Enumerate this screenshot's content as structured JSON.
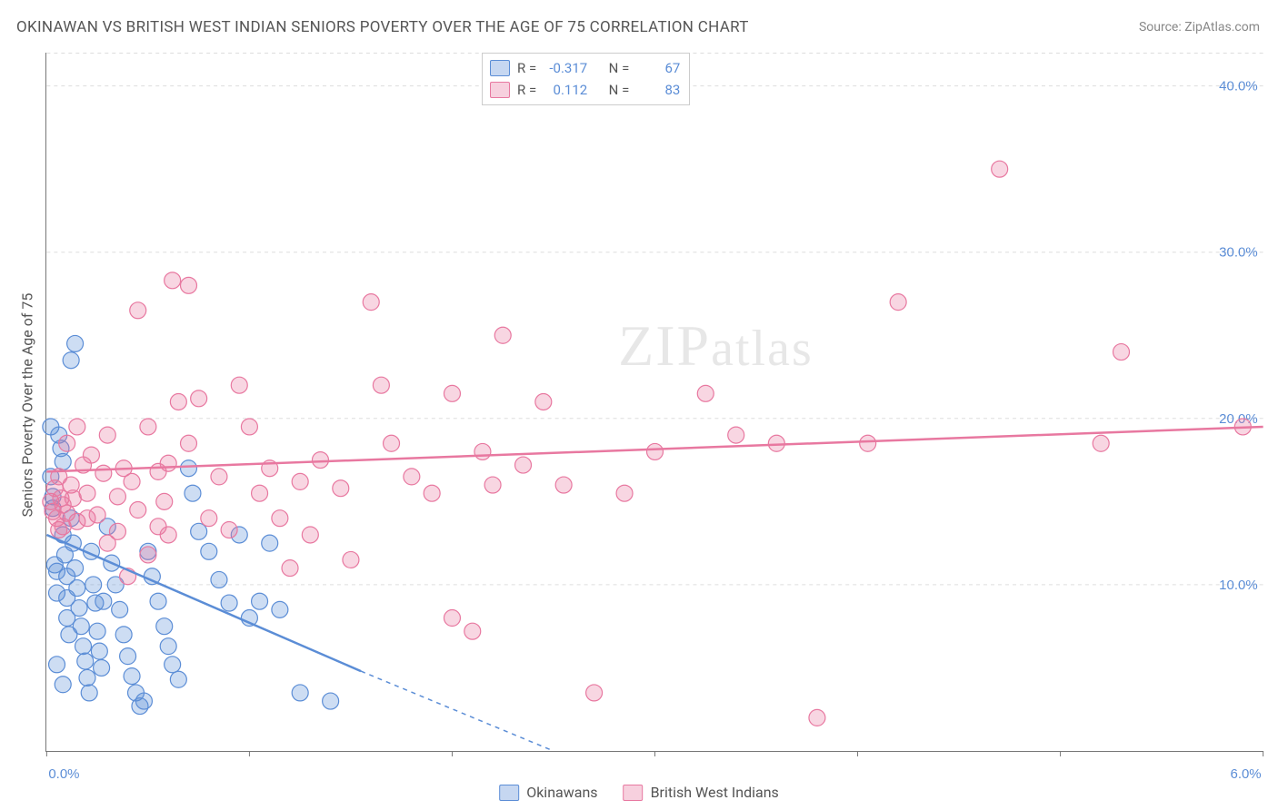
{
  "title": "OKINAWAN VS BRITISH WEST INDIAN SENIORS POVERTY OVER THE AGE OF 75 CORRELATION CHART",
  "source_label": "Source: ",
  "source_name": "ZipAtlas.com",
  "y_axis_title": "Seniors Poverty Over the Age of 75",
  "watermark_a": "ZIP",
  "watermark_b": "atlas",
  "chart": {
    "type": "scatter",
    "xlim": [
      0,
      6
    ],
    "ylim": [
      0,
      42
    ],
    "x_ticks": [
      0,
      1,
      2,
      3,
      4,
      5,
      6
    ],
    "x_tick_labels_shown": {
      "0": "0.0%",
      "6": "6.0%"
    },
    "y_ticks": [
      10,
      20,
      30,
      40
    ],
    "y_tick_labels": [
      "10.0%",
      "20.0%",
      "30.0%",
      "40.0%"
    ],
    "grid_color": "#dddddd",
    "background_color": "#ffffff",
    "axis_color": "#777777",
    "tick_label_color": "#5b8dd6",
    "title_color": "#555555",
    "title_fontsize": 17,
    "label_fontsize": 15,
    "point_radius": 9,
    "point_opacity": 0.35,
    "series": [
      {
        "name": "Okinawans",
        "color": "#5b8dd6",
        "fill": "rgba(91,141,214,0.30)",
        "stroke": "#5b8dd6",
        "r_value": "-0.317",
        "n_value": "67",
        "trend": {
          "x0": 0,
          "y0": 13.0,
          "x1": 1.55,
          "y1": 4.8,
          "x_dash_to": 2.5,
          "y_dash_to": 0
        },
        "points": [
          [
            0.02,
            19.5
          ],
          [
            0.02,
            16.5
          ],
          [
            0.03,
            15.3
          ],
          [
            0.03,
            14.6
          ],
          [
            0.04,
            11.2
          ],
          [
            0.05,
            10.8
          ],
          [
            0.05,
            9.5
          ],
          [
            0.06,
            19.0
          ],
          [
            0.07,
            18.2
          ],
          [
            0.08,
            17.4
          ],
          [
            0.08,
            13.0
          ],
          [
            0.09,
            11.8
          ],
          [
            0.1,
            10.5
          ],
          [
            0.1,
            9.2
          ],
          [
            0.1,
            8.0
          ],
          [
            0.11,
            7.0
          ],
          [
            0.05,
            5.2
          ],
          [
            0.08,
            4.0
          ],
          [
            0.12,
            14.0
          ],
          [
            0.13,
            12.5
          ],
          [
            0.14,
            11.0
          ],
          [
            0.15,
            9.8
          ],
          [
            0.16,
            8.6
          ],
          [
            0.17,
            7.5
          ],
          [
            0.18,
            6.3
          ],
          [
            0.19,
            5.4
          ],
          [
            0.2,
            4.4
          ],
          [
            0.21,
            3.5
          ],
          [
            0.12,
            23.5
          ],
          [
            0.14,
            24.5
          ],
          [
            0.22,
            12.0
          ],
          [
            0.23,
            10.0
          ],
          [
            0.24,
            8.9
          ],
          [
            0.25,
            7.2
          ],
          [
            0.26,
            6.0
          ],
          [
            0.27,
            5.0
          ],
          [
            0.28,
            9.0
          ],
          [
            0.3,
            13.5
          ],
          [
            0.32,
            11.3
          ],
          [
            0.34,
            10.0
          ],
          [
            0.36,
            8.5
          ],
          [
            0.38,
            7.0
          ],
          [
            0.4,
            5.7
          ],
          [
            0.42,
            4.5
          ],
          [
            0.44,
            3.5
          ],
          [
            0.46,
            2.7
          ],
          [
            0.48,
            3.0
          ],
          [
            0.5,
            12.0
          ],
          [
            0.52,
            10.5
          ],
          [
            0.55,
            9.0
          ],
          [
            0.58,
            7.5
          ],
          [
            0.6,
            6.3
          ],
          [
            0.62,
            5.2
          ],
          [
            0.65,
            4.3
          ],
          [
            0.7,
            17.0
          ],
          [
            0.72,
            15.5
          ],
          [
            0.75,
            13.2
          ],
          [
            0.8,
            12.0
          ],
          [
            0.85,
            10.3
          ],
          [
            0.9,
            8.9
          ],
          [
            0.95,
            13.0
          ],
          [
            1.0,
            8.0
          ],
          [
            1.05,
            9.0
          ],
          [
            1.1,
            12.5
          ],
          [
            1.15,
            8.5
          ],
          [
            1.25,
            3.5
          ],
          [
            1.4,
            3.0
          ]
        ]
      },
      {
        "name": "British West Indians",
        "color": "#e878a0",
        "fill": "rgba(232,120,160,0.30)",
        "stroke": "#e878a0",
        "r_value": "0.112",
        "n_value": "83",
        "trend": {
          "x0": 0,
          "y0": 16.8,
          "x1": 6,
          "y1": 19.5
        },
        "points": [
          [
            0.02,
            15.0
          ],
          [
            0.03,
            14.4
          ],
          [
            0.04,
            15.8
          ],
          [
            0.05,
            14.0
          ],
          [
            0.06,
            16.5
          ],
          [
            0.07,
            15.2
          ],
          [
            0.08,
            14.8
          ],
          [
            0.1,
            18.5
          ],
          [
            0.12,
            16.0
          ],
          [
            0.15,
            19.5
          ],
          [
            0.18,
            17.2
          ],
          [
            0.2,
            15.5
          ],
          [
            0.22,
            17.8
          ],
          [
            0.06,
            13.3
          ],
          [
            0.25,
            14.2
          ],
          [
            0.28,
            16.7
          ],
          [
            0.3,
            19.0
          ],
          [
            0.35,
            15.3
          ],
          [
            0.38,
            17.0
          ],
          [
            0.42,
            16.2
          ],
          [
            0.45,
            14.5
          ],
          [
            0.5,
            19.5
          ],
          [
            0.55,
            16.8
          ],
          [
            0.58,
            15.0
          ],
          [
            0.6,
            17.3
          ],
          [
            0.1,
            14.3
          ],
          [
            0.45,
            26.5
          ],
          [
            0.6,
            13.0
          ],
          [
            0.65,
            21.0
          ],
          [
            0.7,
            18.5
          ],
          [
            0.62,
            28.3
          ],
          [
            0.75,
            21.2
          ],
          [
            0.7,
            28.0
          ],
          [
            0.8,
            14.0
          ],
          [
            0.85,
            16.5
          ],
          [
            0.9,
            13.3
          ],
          [
            0.95,
            22.0
          ],
          [
            1.0,
            19.5
          ],
          [
            1.05,
            15.5
          ],
          [
            1.1,
            17.0
          ],
          [
            1.15,
            14.0
          ],
          [
            1.2,
            11.0
          ],
          [
            1.25,
            16.2
          ],
          [
            1.35,
            17.5
          ],
          [
            1.45,
            15.8
          ],
          [
            1.5,
            11.5
          ],
          [
            1.6,
            27.0
          ],
          [
            1.65,
            22.0
          ],
          [
            1.7,
            18.5
          ],
          [
            1.8,
            16.5
          ],
          [
            1.9,
            15.5
          ],
          [
            2.0,
            21.5
          ],
          [
            2.0,
            8.0
          ],
          [
            2.1,
            7.2
          ],
          [
            2.15,
            18.0
          ],
          [
            2.2,
            16.0
          ],
          [
            2.25,
            25.0
          ],
          [
            2.35,
            17.2
          ],
          [
            2.45,
            21.0
          ],
          [
            2.55,
            16.0
          ],
          [
            2.7,
            3.5
          ],
          [
            2.85,
            15.5
          ],
          [
            3.0,
            18.0
          ],
          [
            3.25,
            21.5
          ],
          [
            3.4,
            19.0
          ],
          [
            3.6,
            18.5
          ],
          [
            3.8,
            2.0
          ],
          [
            4.05,
            18.5
          ],
          [
            4.2,
            27.0
          ],
          [
            4.7,
            35.0
          ],
          [
            5.2,
            18.5
          ],
          [
            5.3,
            24.0
          ],
          [
            5.9,
            19.5
          ],
          [
            0.3,
            12.5
          ],
          [
            0.4,
            10.5
          ],
          [
            0.35,
            13.2
          ],
          [
            0.5,
            11.8
          ],
          [
            0.15,
            13.8
          ],
          [
            0.08,
            13.5
          ],
          [
            0.55,
            13.5
          ],
          [
            0.13,
            15.2
          ],
          [
            1.3,
            13.0
          ],
          [
            0.2,
            14.0
          ]
        ]
      }
    ]
  },
  "stats_labels": {
    "r": "R =",
    "n": "N ="
  },
  "legend": [
    "Okinawans",
    "British West Indians"
  ]
}
